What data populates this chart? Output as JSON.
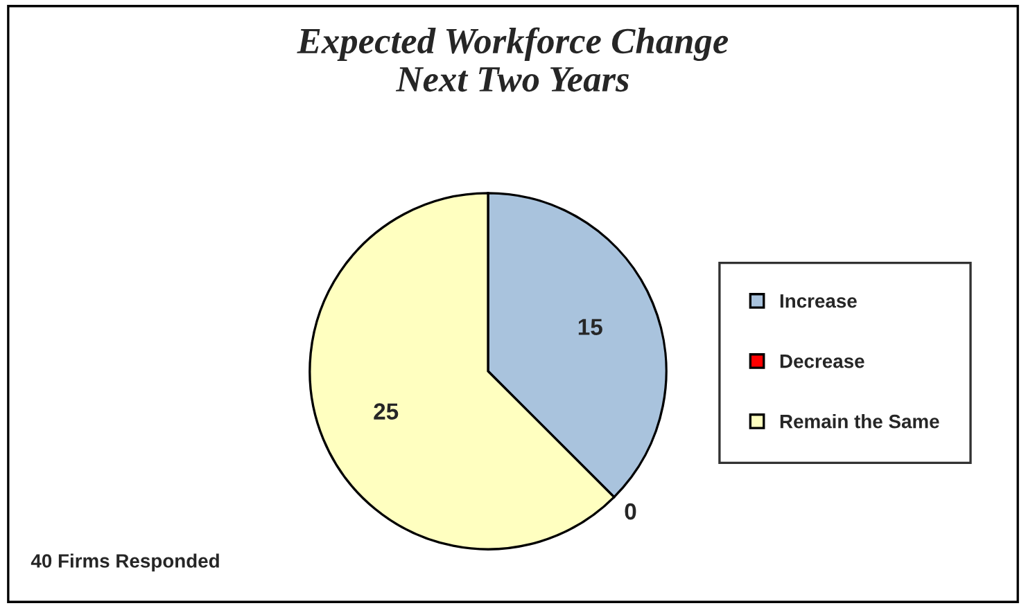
{
  "chart_data": {
    "type": "pie",
    "title": "Expected Workforce Change\nNext Two Years",
    "categories": [
      "Increase",
      "Decrease",
      "Remain the Same"
    ],
    "values": [
      15,
      0,
      25
    ],
    "colors": [
      "#a9c3dd",
      "#ff0000",
      "#ffffc0"
    ],
    "value_labels": [
      "15",
      "0",
      "25"
    ],
    "legend": "right",
    "annotations": [
      "40 Firms Responded"
    ]
  }
}
